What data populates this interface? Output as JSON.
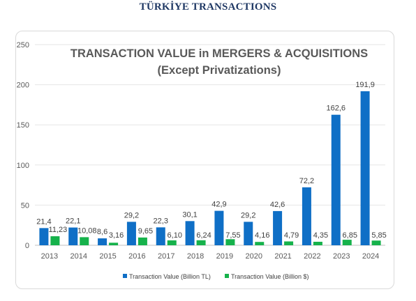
{
  "header": {
    "title": "TÜRKİYE TRANSACTIONS"
  },
  "chart_data": {
    "type": "bar",
    "title": "TRANSACTION VALUE in MERGERS & ACQUISITIONS",
    "subtitle": "(Except Privatizations)",
    "categories": [
      "2013",
      "2014",
      "2015",
      "2016",
      "2017",
      "2018",
      "2019",
      "2020",
      "2021",
      "2022",
      "2023",
      "2024"
    ],
    "series": [
      {
        "name": "Transaction Value (Billion TL)",
        "color": "#0f6fc6",
        "values": [
          21.4,
          22.1,
          8.6,
          29.2,
          22.3,
          30.1,
          42.9,
          29.2,
          42.6,
          72.2,
          162.6,
          191.9
        ],
        "labels": [
          "21,4",
          "22,1",
          "8,6",
          "29,2",
          "22,3",
          "30,1",
          "42,9",
          "29,2",
          "42,6",
          "72,2",
          "162,6",
          "191,9"
        ]
      },
      {
        "name": "Transaction Value (Billion $)",
        "color": "#16b24b",
        "values": [
          11.23,
          10.08,
          3.16,
          9.65,
          6.1,
          6.24,
          7.55,
          4.16,
          4.79,
          4.35,
          6.85,
          5.85
        ],
        "labels": [
          "11,23",
          "10,08",
          "3,16",
          "9,65",
          "6,10",
          "6,24",
          "7,55",
          "4,16",
          "4,79",
          "4,35",
          "6,85",
          "5,85"
        ]
      }
    ],
    "ylim": [
      0,
      250
    ],
    "yticks": [
      0,
      50,
      100,
      150,
      200,
      250
    ],
    "grid": true,
    "legend_position": "bottom"
  }
}
